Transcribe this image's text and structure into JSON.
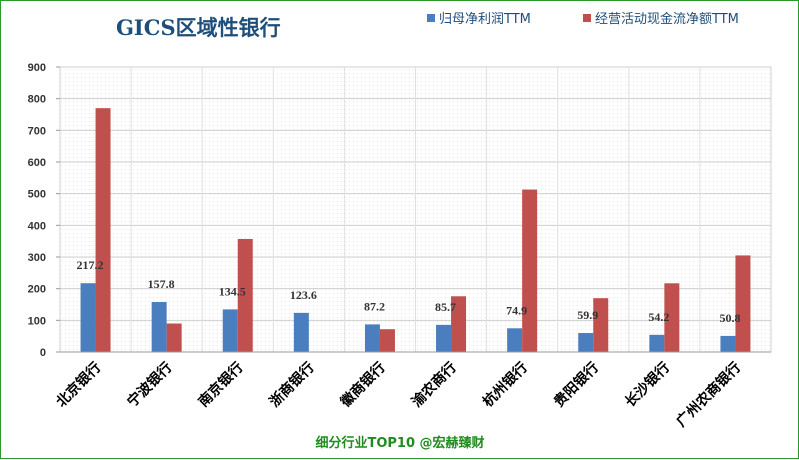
{
  "chart_data": {
    "type": "bar",
    "title": "GICS区域性银行",
    "categories": [
      "北京银行",
      "宁波银行",
      "南京银行",
      "浙商银行",
      "徽商银行",
      "渝农商行",
      "杭州银行",
      "贵阳银行",
      "长沙银行",
      "广州农商银行"
    ],
    "series": [
      {
        "name": "归母净利润TTM",
        "color": "#4a7ebf",
        "values": [
          217.2,
          157.8,
          134.5,
          123.6,
          87.2,
          85.7,
          74.9,
          59.9,
          54.2,
          50.8
        ],
        "data_labels": [
          "217.2",
          "157.8",
          "134.5",
          "123.6",
          "87.2",
          "85.7",
          "74.9",
          "59.9",
          "54.2",
          "50.8"
        ]
      },
      {
        "name": "经营活动现金流净额TTM",
        "color": "#c0504d",
        "values": [
          770,
          90,
          357,
          null,
          72,
          176,
          513,
          170,
          217,
          305
        ]
      }
    ],
    "ylim": [
      0,
      900
    ],
    "yticks": [
      0,
      100,
      200,
      300,
      400,
      500,
      600,
      700,
      800,
      900
    ],
    "grid": true,
    "legend": "top-right"
  },
  "footer": "细分行业TOP10 @宏赫臻财"
}
